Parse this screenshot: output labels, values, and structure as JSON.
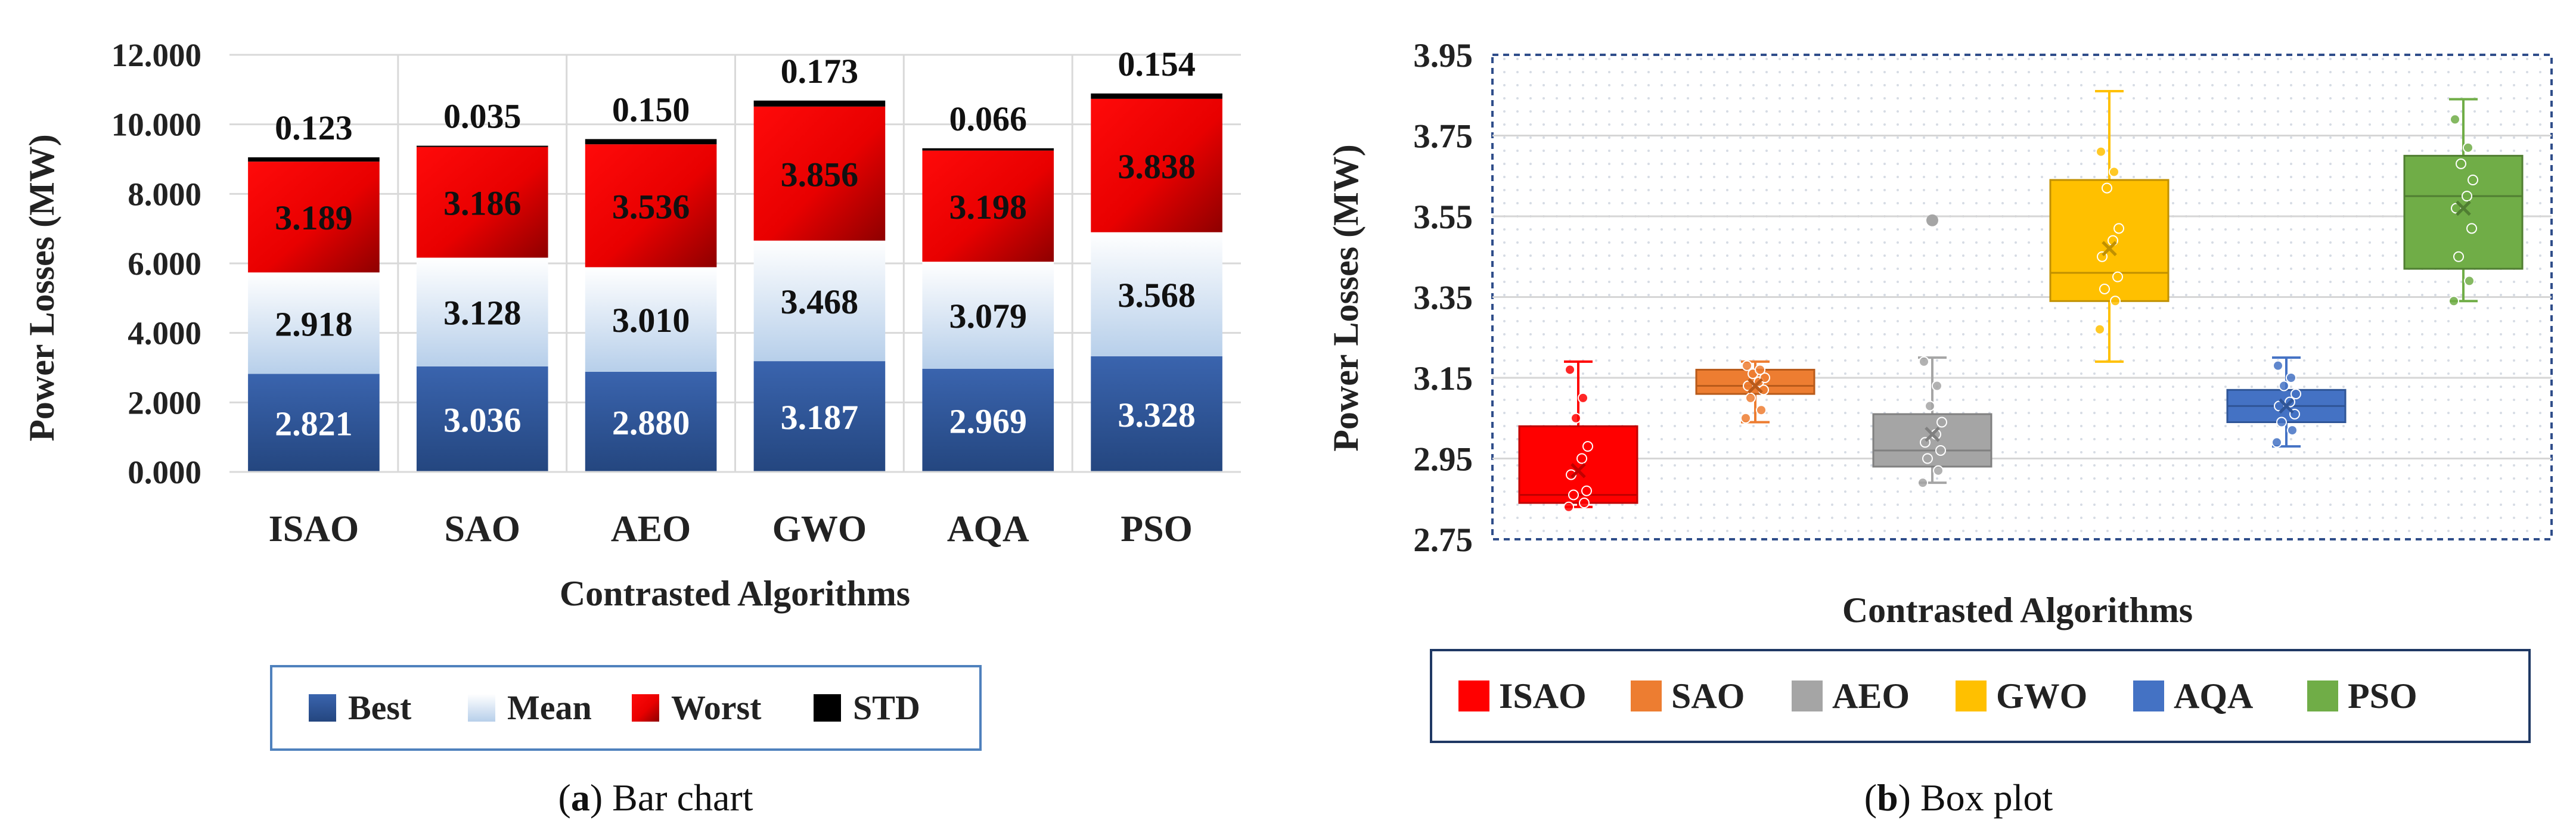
{
  "chart_data": [
    {
      "type": "bar",
      "stacked": true,
      "caption_letter": "a",
      "caption_text": "Bar chart",
      "xlabel": "Contrasted Algorithms",
      "ylabel": "Power Losses (MW)",
      "ylim": [
        0,
        12
      ],
      "yticks": [
        "0.000",
        "2.000",
        "4.000",
        "6.000",
        "8.000",
        "10.000",
        "12.000"
      ],
      "grid": true,
      "legend_position": "bottom",
      "categories": [
        "ISAO",
        "SAO",
        "AEO",
        "GWO",
        "AQA",
        "PSO"
      ],
      "series": [
        {
          "name": "Best",
          "color": "#2F5597",
          "values": [
            2.821,
            3.036,
            2.88,
            3.187,
            2.969,
            3.328
          ],
          "labels": [
            "2.821",
            "3.036",
            "2.880",
            "3.187",
            "2.969",
            "3.328"
          ]
        },
        {
          "name": "Mean",
          "color": "#C7DAEF",
          "values": [
            2.918,
            3.128,
            3.01,
            3.468,
            3.079,
            3.568
          ],
          "labels": [
            "2.918",
            "3.128",
            "3.010",
            "3.468",
            "3.079",
            "3.568"
          ]
        },
        {
          "name": "Worst",
          "color": "#E31A1A",
          "values": [
            3.189,
            3.186,
            3.536,
            3.856,
            3.198,
            3.838
          ],
          "labels": [
            "3.189",
            "3.186",
            "3.536",
            "3.856",
            "3.198",
            "3.838"
          ]
        },
        {
          "name": "STD",
          "color": "#000000",
          "values": [
            0.123,
            0.035,
            0.15,
            0.173,
            0.066,
            0.154
          ],
          "labels": [
            "0.123",
            "0.035",
            "0.150",
            "0.173",
            "0.066",
            "0.154"
          ]
        }
      ]
    },
    {
      "type": "box",
      "caption_letter": "b",
      "caption_text": "Box plot",
      "xlabel": "Contrasted Algorithms",
      "ylabel": "Power Losses (MW)",
      "ylim": [
        2.75,
        3.95
      ],
      "yticks": [
        "2.75",
        "2.95",
        "3.15",
        "3.35",
        "3.55",
        "3.75",
        "3.95"
      ],
      "grid": true,
      "legend_position": "bottom",
      "series": [
        {
          "name": "ISAO",
          "color": "#FF0000",
          "dark": "#C00000",
          "min": 2.83,
          "q1": 2.84,
          "median": 2.86,
          "q3": 3.03,
          "max": 3.19,
          "mean": 2.92,
          "points": [
            2.83,
            2.84,
            2.86,
            2.87,
            2.91,
            2.95,
            2.98,
            3.05,
            3.1,
            3.17
          ],
          "outliers": []
        },
        {
          "name": "SAO",
          "color": "#ED7D31",
          "dark": "#B85A1A",
          "min": 3.04,
          "q1": 3.11,
          "median": 3.13,
          "q3": 3.17,
          "max": 3.19,
          "mean": 3.13,
          "points": [
            3.05,
            3.07,
            3.1,
            3.12,
            3.13,
            3.14,
            3.15,
            3.16,
            3.17,
            3.18
          ],
          "outliers": []
        },
        {
          "name": "AEO",
          "color": "#A5A5A5",
          "dark": "#808080",
          "min": 2.89,
          "q1": 2.93,
          "median": 2.97,
          "q3": 3.06,
          "max": 3.2,
          "mean": 3.01,
          "points": [
            2.89,
            2.92,
            2.95,
            2.97,
            2.99,
            3.01,
            3.04,
            3.08,
            3.13,
            3.19
          ],
          "outliers": [
            3.54
          ]
        },
        {
          "name": "GWO",
          "color": "#FFC000",
          "dark": "#C09000",
          "min": 3.19,
          "q1": 3.34,
          "median": 3.41,
          "q3": 3.64,
          "max": 3.86,
          "mean": 3.47,
          "points": [
            3.27,
            3.34,
            3.37,
            3.4,
            3.45,
            3.49,
            3.52,
            3.62,
            3.66,
            3.71
          ],
          "outliers": []
        },
        {
          "name": "AQA",
          "color": "#4472C4",
          "dark": "#2F5597",
          "min": 2.98,
          "q1": 3.04,
          "median": 3.08,
          "q3": 3.12,
          "max": 3.2,
          "mean": 3.08,
          "points": [
            2.99,
            3.02,
            3.04,
            3.06,
            3.08,
            3.09,
            3.11,
            3.13,
            3.15,
            3.18
          ],
          "outliers": []
        },
        {
          "name": "PSO",
          "color": "#70AD47",
          "dark": "#507E32",
          "min": 3.34,
          "q1": 3.42,
          "median": 3.6,
          "q3": 3.7,
          "max": 3.84,
          "mean": 3.57,
          "points": [
            3.34,
            3.39,
            3.45,
            3.52,
            3.57,
            3.6,
            3.64,
            3.68,
            3.72,
            3.79
          ],
          "outliers": []
        }
      ]
    }
  ]
}
